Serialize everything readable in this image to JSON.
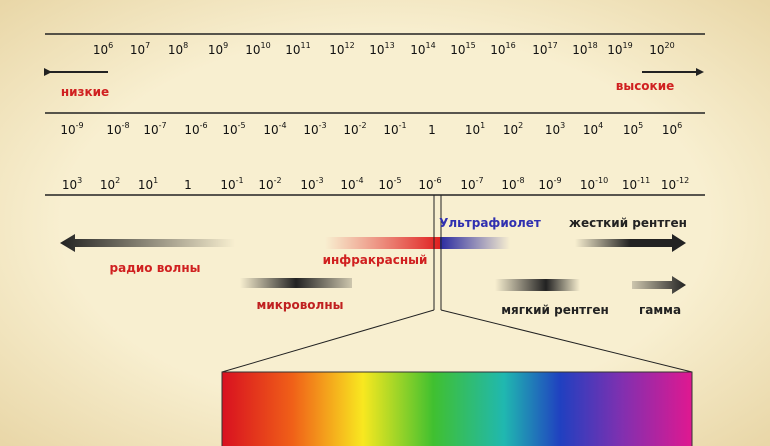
{
  "scales": [
    {
      "ticks": [
        {
          "base": "10",
          "exp": "6"
        },
        {
          "base": "10",
          "exp": "7"
        },
        {
          "base": "10",
          "exp": "8"
        },
        {
          "base": "10",
          "exp": "9"
        },
        {
          "base": "10",
          "exp": "10"
        },
        {
          "base": "10",
          "exp": "11"
        },
        {
          "base": "10",
          "exp": "12"
        },
        {
          "base": "10",
          "exp": "13"
        },
        {
          "base": "10",
          "exp": "14"
        },
        {
          "base": "10",
          "exp": "15"
        },
        {
          "base": "10",
          "exp": "16"
        },
        {
          "base": "10",
          "exp": "17"
        },
        {
          "base": "10",
          "exp": "18"
        },
        {
          "base": "10",
          "exp": "19"
        },
        {
          "base": "10",
          "exp": "20"
        }
      ]
    },
    {
      "ticks": [
        {
          "base": "10",
          "exp": "-9"
        },
        {
          "base": "10",
          "exp": "-8"
        },
        {
          "base": "10",
          "exp": "-7"
        },
        {
          "base": "10",
          "exp": "-6"
        },
        {
          "base": "10",
          "exp": "-5"
        },
        {
          "base": "10",
          "exp": "-4"
        },
        {
          "base": "10",
          "exp": "-3"
        },
        {
          "base": "10",
          "exp": "-2"
        },
        {
          "base": "10",
          "exp": "-1"
        },
        {
          "base": "1"
        },
        {
          "base": "10",
          "exp": "1"
        },
        {
          "base": "10",
          "exp": "2"
        },
        {
          "base": "10",
          "exp": "3"
        },
        {
          "base": "10",
          "exp": "4"
        },
        {
          "base": "10",
          "exp": "5"
        },
        {
          "base": "10",
          "exp": "6"
        }
      ]
    },
    {
      "ticks": [
        {
          "base": "10",
          "exp": "3"
        },
        {
          "base": "10",
          "exp": "2"
        },
        {
          "base": "10",
          "exp": "1"
        },
        {
          "base": "1"
        },
        {
          "base": "10",
          "exp": "-1"
        },
        {
          "base": "10",
          "exp": "-2"
        },
        {
          "base": "10",
          "exp": "-3"
        },
        {
          "base": "10",
          "exp": "-4"
        },
        {
          "base": "10",
          "exp": "-5"
        },
        {
          "base": "10",
          "exp": "-6"
        },
        {
          "base": "10",
          "exp": "-7"
        },
        {
          "base": "10",
          "exp": "-8"
        },
        {
          "base": "10",
          "exp": "-9"
        },
        {
          "base": "10",
          "exp": "-10"
        },
        {
          "base": "10",
          "exp": "-11"
        },
        {
          "base": "10",
          "exp": "-12"
        }
      ]
    }
  ],
  "low": "низкие",
  "high": "высокие",
  "bands": {
    "radio": "радио волны",
    "microwave": "микроволны",
    "infrared": "инфракрасный",
    "ultraviolet": "Ультрафиолет",
    "hard_xray": "жесткий рентген",
    "soft_xray": "мягкий рентген",
    "gamma": "гамма"
  }
}
